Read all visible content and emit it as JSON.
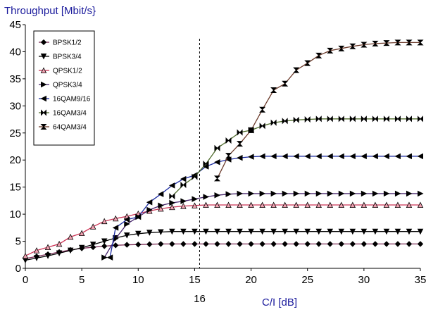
{
  "chart_data": {
    "type": "line",
    "ylabel": "Throughput [Mbit/s}",
    "xlabel": "C/I [dB]",
    "xlim": [
      0,
      35
    ],
    "ylim": [
      0,
      45
    ],
    "x_ticks": [
      0,
      5,
      10,
      15,
      20,
      25,
      30,
      35
    ],
    "y_ticks": [
      0,
      5,
      10,
      15,
      20,
      25,
      30,
      35,
      40,
      45
    ],
    "grid": false,
    "legend_position": "top-left",
    "annotation": {
      "x": 16,
      "label": "16",
      "style": "dashed vertical line"
    },
    "series": [
      {
        "name": "BPSK1/2",
        "marker": "diamond",
        "color": "#7a2a55",
        "x": [
          0,
          1,
          2,
          3,
          4,
          5,
          6,
          7,
          8,
          9,
          10,
          11,
          12,
          13,
          14,
          15,
          16,
          17,
          18,
          19,
          20,
          21,
          22,
          23,
          24,
          25,
          26,
          27,
          28,
          29,
          30,
          31,
          32,
          33,
          34,
          35
        ],
        "y": [
          1.8,
          2.2,
          2.6,
          3.0,
          3.4,
          3.7,
          3.9,
          4.1,
          4.25,
          4.35,
          4.4,
          4.45,
          4.5,
          4.5,
          4.5,
          4.5,
          4.5,
          4.5,
          4.5,
          4.5,
          4.5,
          4.5,
          4.5,
          4.5,
          4.5,
          4.5,
          4.5,
          4.5,
          4.5,
          4.5,
          4.5,
          4.5,
          4.5,
          4.5,
          4.5,
          4.5
        ]
      },
      {
        "name": "BPSK3/4",
        "marker": "triangle-down",
        "color": "#000000",
        "x": [
          0,
          1,
          2,
          3,
          4,
          5,
          6,
          7,
          8,
          9,
          10,
          11,
          12,
          13,
          14,
          15,
          16,
          17,
          18,
          19,
          20,
          21,
          22,
          23,
          24,
          25,
          26,
          27,
          28,
          29,
          30,
          31,
          32,
          33,
          34,
          35
        ],
        "y": [
          1.5,
          1.9,
          2.3,
          2.8,
          3.3,
          3.8,
          4.4,
          5.0,
          5.6,
          6.1,
          6.4,
          6.6,
          6.7,
          6.8,
          6.8,
          6.8,
          6.8,
          6.8,
          6.8,
          6.8,
          6.8,
          6.8,
          6.8,
          6.8,
          6.8,
          6.8,
          6.8,
          6.8,
          6.8,
          6.8,
          6.8,
          6.8,
          6.8,
          6.8,
          6.8,
          6.8
        ]
      },
      {
        "name": "QPSK1/2",
        "marker": "triangle-up",
        "color": "#cc3355",
        "x": [
          0,
          1,
          2,
          3,
          4,
          5,
          6,
          7,
          8,
          9,
          10,
          11,
          12,
          13,
          14,
          15,
          16,
          17,
          18,
          19,
          20,
          21,
          22,
          23,
          24,
          25,
          26,
          27,
          28,
          29,
          30,
          31,
          32,
          33,
          34,
          35
        ],
        "y": [
          2.3,
          3.3,
          3.9,
          4.5,
          5.8,
          6.5,
          7.7,
          8.7,
          9.2,
          9.6,
          10.1,
          10.6,
          11.0,
          11.3,
          11.5,
          11.6,
          11.7,
          11.7,
          11.7,
          11.7,
          11.7,
          11.7,
          11.7,
          11.7,
          11.7,
          11.7,
          11.7,
          11.7,
          11.7,
          11.7,
          11.7,
          11.7,
          11.7,
          11.7,
          11.7,
          11.7
        ]
      },
      {
        "name": "QPSK3/4",
        "marker": "triangle-right",
        "color": "#44226a",
        "x": [
          7,
          8,
          9,
          10,
          11,
          12,
          13,
          14,
          15,
          16,
          17,
          18,
          19,
          20,
          21,
          22,
          23,
          24,
          25,
          26,
          27,
          28,
          29,
          30,
          31,
          32,
          33,
          34,
          35
        ],
        "y": [
          2.0,
          5.5,
          8.2,
          9.5,
          10.8,
          11.6,
          12.1,
          12.4,
          12.8,
          13.2,
          13.5,
          13.7,
          13.8,
          13.8,
          13.8,
          13.8,
          13.8,
          13.8,
          13.8,
          13.8,
          13.8,
          13.8,
          13.8,
          13.8,
          13.8,
          13.8,
          13.8,
          13.8,
          13.8
        ]
      },
      {
        "name": "16QAM9/16",
        "marker": "triangle-left",
        "color": "#1a2aa0",
        "x": [
          7.5,
          8,
          9,
          10,
          11,
          12,
          13,
          14,
          15,
          16,
          17,
          18,
          19,
          20,
          21,
          22,
          23,
          24,
          25,
          26,
          27,
          28,
          29,
          30,
          31,
          32,
          33,
          34,
          35
        ],
        "y": [
          2.0,
          7.5,
          9.0,
          9.5,
          12.2,
          13.7,
          15.3,
          16.5,
          17.2,
          18.8,
          19.6,
          20.1,
          20.4,
          20.6,
          20.7,
          20.7,
          20.7,
          20.7,
          20.7,
          20.7,
          20.7,
          20.7,
          20.7,
          20.7,
          20.7,
          20.7,
          20.7,
          20.7,
          20.7
        ]
      },
      {
        "name": "16QAM3/4",
        "marker": "bowtie",
        "color": "#4d6a2a",
        "x": [
          13,
          14,
          15,
          16,
          17,
          18,
          19,
          20,
          21,
          22,
          23,
          24,
          25,
          26,
          27,
          28,
          29,
          30,
          31,
          32,
          33,
          34,
          35
        ],
        "y": [
          13.3,
          15.4,
          16.9,
          19.3,
          22.2,
          23.6,
          25.1,
          25.5,
          26.3,
          26.9,
          27.2,
          27.4,
          27.5,
          27.6,
          27.6,
          27.6,
          27.6,
          27.6,
          27.6,
          27.6,
          27.6,
          27.6,
          27.6
        ]
      },
      {
        "name": "64QAM3/4",
        "marker": "hourglass",
        "color": "#6b3a2a",
        "x": [
          17,
          18,
          19,
          20,
          21,
          22,
          23,
          24,
          25,
          26,
          27,
          28,
          29,
          30,
          31,
          32,
          33,
          34,
          35
        ],
        "y": [
          16.6,
          20.8,
          23.0,
          25.5,
          29.3,
          32.9,
          34.1,
          36.6,
          37.9,
          39.3,
          40.2,
          40.6,
          41.0,
          41.3,
          41.5,
          41.6,
          41.7,
          41.7,
          41.7
        ]
      }
    ]
  }
}
